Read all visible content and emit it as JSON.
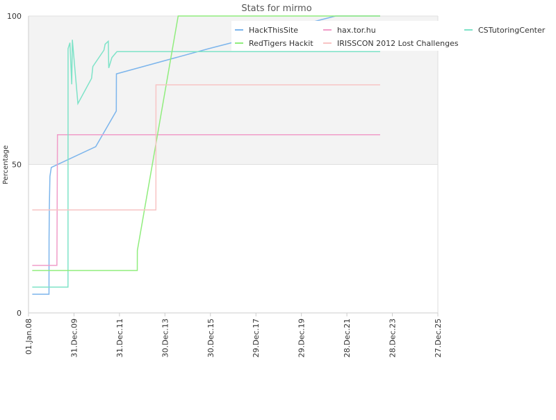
{
  "chart_data": {
    "type": "line",
    "title": "Stats for mirmo",
    "y_label": "Percentage",
    "xlim": [
      "2008-01-01",
      "2025-12-27"
    ],
    "xticks": [
      {
        "value": "2008-01-01",
        "label": "01.Jan.08"
      },
      {
        "value": "2009-12-31",
        "label": "31.Dec.09"
      },
      {
        "value": "2011-12-31",
        "label": "31.Dec.11"
      },
      {
        "value": "2013-12-30",
        "label": "30.Dec.13"
      },
      {
        "value": "2015-12-30",
        "label": "30.Dec.15"
      },
      {
        "value": "2017-12-29",
        "label": "29.Dec.17"
      },
      {
        "value": "2019-12-29",
        "label": "29.Dec.19"
      },
      {
        "value": "2021-12-28",
        "label": "28.Dec.21"
      },
      {
        "value": "2023-12-28",
        "label": "28.Dec.23"
      },
      {
        "value": "2025-12-27",
        "label": "27.Dec.25"
      }
    ],
    "ylim": [
      0,
      100
    ],
    "yticks": [
      0,
      50,
      100
    ],
    "plot_band_y": [
      50,
      100
    ],
    "series": [
      {
        "name": "HackThisSite",
        "color": "#7cb5ec",
        "x": [
          "2008-03-01",
          "2008-11-25",
          "2008-11-26",
          "2008-12-01",
          "2008-12-10",
          "2009-01-01",
          "2010-12-15",
          "2011-11-10",
          "2011-11-12",
          "2015-12-01",
          "2021-07-01",
          "2023-06-15"
        ],
        "values": [
          6.3,
          6.3,
          25,
          36,
          46,
          49,
          56,
          68,
          80.5,
          89,
          100,
          100
        ]
      },
      {
        "name": "hax.tor.hu",
        "color": "#f09cc8",
        "x": [
          "2008-03-01",
          "2009-04-01",
          "2009-04-10",
          "2023-06-15"
        ],
        "values": [
          16,
          16,
          60,
          60
        ]
      },
      {
        "name": "CSTutoringCenter",
        "color": "#7ee3c8",
        "x": [
          "2008-03-01",
          "2009-09-26",
          "2009-09-27",
          "2009-10-27",
          "2009-11-25",
          "2009-12-05",
          "2010-03-04",
          "2010-10-09",
          "2010-10-30",
          "2011-04-26",
          "2011-05-15",
          "2011-07-05",
          "2011-07-12",
          "2011-09-01",
          "2011-11-20",
          "2023-06-15"
        ],
        "values": [
          8.7,
          8.7,
          89,
          91,
          77,
          92,
          70.5,
          79,
          83,
          88.5,
          90.5,
          91.5,
          82.5,
          86,
          88,
          88
        ]
      },
      {
        "name": "RedTigers Hackit",
        "color": "#90ed7d",
        "x": [
          "2008-03-01",
          "2012-10-12",
          "2012-10-13",
          "2014-07-30",
          "2023-06-15"
        ],
        "values": [
          14.3,
          14.3,
          21,
          100,
          100
        ]
      },
      {
        "name": "IRISSCON 2012 Lost Challenges",
        "color": "#f8c4c4",
        "x": [
          "2008-03-01",
          "2013-08-07",
          "2013-08-08",
          "2023-06-15"
        ],
        "values": [
          34.7,
          34.7,
          76.8,
          76.8
        ]
      }
    ]
  }
}
